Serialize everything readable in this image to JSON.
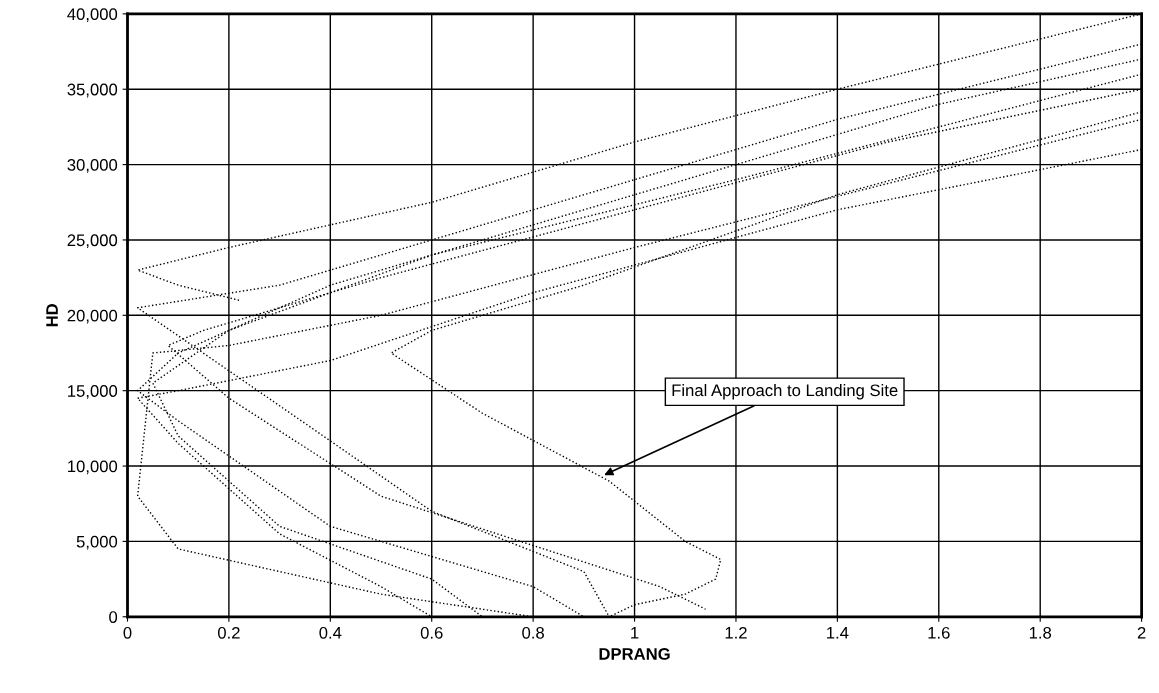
{
  "chart_data": {
    "type": "line",
    "xlabel": "DPRANG",
    "ylabel": "HD",
    "xlim": [
      0,
      2
    ],
    "ylim": [
      0,
      40000
    ],
    "xticks": [
      0,
      0.2,
      0.4,
      0.6,
      0.8,
      1,
      1.2,
      1.4,
      1.6,
      1.8,
      2
    ],
    "yticks": [
      0,
      {
        "value": 5000,
        "label": "5,000"
      },
      {
        "value": 10000,
        "label": "10,000"
      },
      {
        "value": 15000,
        "label": "15,000"
      },
      {
        "value": 20000,
        "label": "20,000"
      },
      {
        "value": 25000,
        "label": "25,000"
      },
      {
        "value": 30000,
        "label": "30,000"
      },
      {
        "value": 35000,
        "label": "35,000"
      },
      {
        "value": 40000,
        "label": "40,000"
      }
    ],
    "grid": true,
    "marker": "none",
    "line_style": "dotted",
    "annotations": [
      {
        "text": "Final Approach to Landing Site",
        "x": 0.94,
        "y": 9400
      }
    ],
    "series": [
      {
        "color": "#000000",
        "x": [
          2,
          1.4,
          1.0,
          0.6,
          0.2,
          0.02,
          0.1,
          0.22
        ],
        "values": [
          40000,
          35000,
          31500,
          27500,
          24500,
          23000,
          22000,
          21000
        ]
      },
      {
        "color": "#000000",
        "x": [
          2,
          1.6,
          1.2,
          0.8,
          0.4,
          0.1,
          0.02,
          0.1,
          0.4,
          0.8,
          0.9
        ],
        "values": [
          37000,
          34000,
          30000,
          26000,
          22000,
          17500,
          15000,
          13000,
          6000,
          2000,
          0
        ]
      },
      {
        "color": "#000000",
        "x": [
          2,
          1.2,
          0.6,
          0.2,
          0.05,
          0.1,
          0.3,
          0.6,
          0.7
        ],
        "values": [
          36000,
          29000,
          24000,
          19000,
          15500,
          12000,
          6000,
          2500,
          0
        ]
      },
      {
        "color": "#000000",
        "x": [
          2,
          1.4,
          0.8,
          0.4,
          0.1,
          0.02,
          0.1,
          0.3,
          0.5,
          0.6
        ],
        "values": [
          31000,
          27000,
          21500,
          17000,
          15000,
          14500,
          11500,
          5500,
          2000,
          0
        ]
      },
      {
        "color": "#000000",
        "x": [
          2,
          1.4,
          0.9,
          0.6,
          0.52,
          0.7,
          0.95,
          1.1,
          1.17,
          1.16,
          1.1,
          1.0,
          0.95
        ],
        "values": [
          33500,
          28000,
          22000,
          19000,
          17500,
          13500,
          9000,
          5000,
          3800,
          2500,
          1500,
          800,
          0
        ]
      },
      {
        "color": "#000000",
        "x": [
          2,
          1.0,
          0.5,
          0.2,
          0.05,
          0.02,
          0.1,
          0.5,
          0.8
        ],
        "values": [
          33000,
          24500,
          20000,
          18000,
          17500,
          8000,
          4500,
          1500,
          0
        ]
      },
      {
        "color": "#000000",
        "x": [
          2,
          1.4,
          0.8,
          0.3,
          0.02,
          0.3,
          0.6,
          0.9,
          0.95
        ],
        "values": [
          38000,
          33000,
          27000,
          22000,
          20500,
          14000,
          7000,
          3000,
          0
        ]
      },
      {
        "color": "#000000",
        "x": [
          2,
          1.5,
          1.0,
          0.5,
          0.15,
          0.08,
          0.2,
          0.5,
          1.05,
          1.14
        ],
        "values": [
          35000,
          31500,
          27000,
          22500,
          19000,
          18000,
          14500,
          8000,
          2000,
          500
        ]
      }
    ]
  }
}
